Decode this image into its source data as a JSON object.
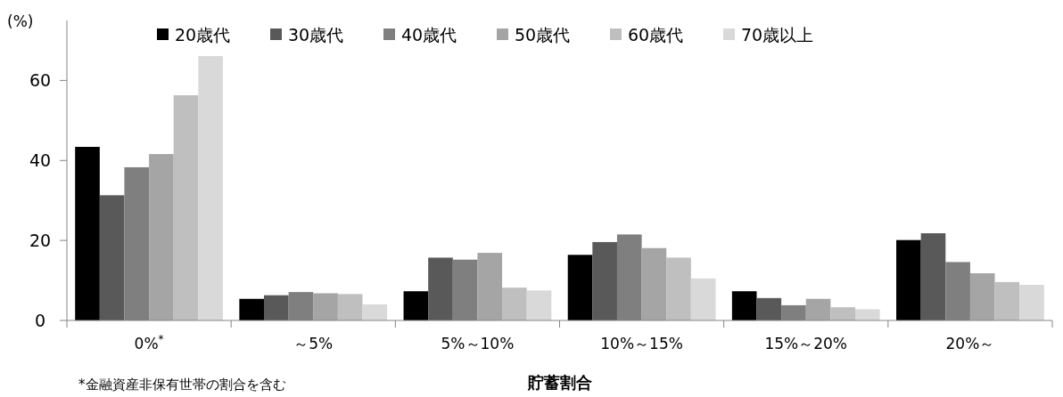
{
  "chart_data": {
    "type": "bar",
    "ylabel": "(%)",
    "xlabel": "貯蓄割合",
    "categories": [
      "0%$^{*}$",
      "～5%",
      "5%～10%",
      "10%～15%",
      "15%～20%",
      "20%～"
    ],
    "series": [
      {
        "name": "20歳代",
        "color": "#000000",
        "values": [
          43.4,
          5.4,
          7.3,
          16.4,
          7.3,
          20.1
        ]
      },
      {
        "name": "30歳代",
        "color": "#595959",
        "values": [
          31.3,
          6.3,
          15.7,
          19.6,
          5.6,
          21.8
        ]
      },
      {
        "name": "40歳代",
        "color": "#7f7f7f",
        "values": [
          38.3,
          7.1,
          15.2,
          21.5,
          3.8,
          14.6
        ]
      },
      {
        "name": "50歳代",
        "color": "#a5a5a5",
        "values": [
          41.6,
          6.8,
          16.9,
          18.1,
          5.4,
          11.8
        ]
      },
      {
        "name": "60歳代",
        "color": "#bfbfbf",
        "values": [
          56.3,
          6.6,
          8.2,
          15.7,
          3.3,
          9.6
        ]
      },
      {
        "name": "70歳以上",
        "color": "#d9d9d9",
        "values": [
          66.1,
          4.0,
          7.5,
          10.5,
          2.8,
          8.9
        ]
      }
    ],
    "ylim": [
      0,
      75
    ],
    "yticks": [
      0,
      20,
      40,
      60
    ],
    "legend": "top",
    "grid": false,
    "annotations": [
      "*金融資産非保有世帯の割合を含む"
    ]
  }
}
